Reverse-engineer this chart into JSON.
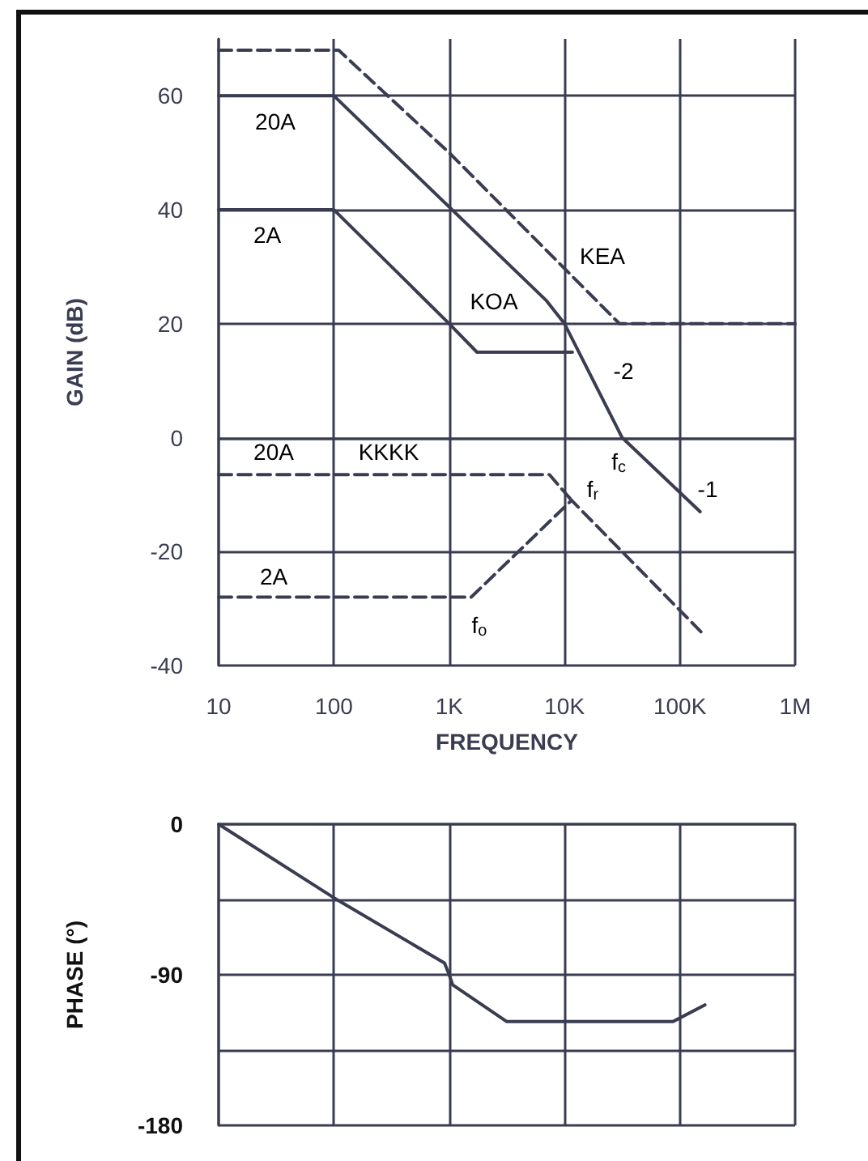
{
  "chart_data": [
    {
      "type": "line",
      "xlabel": "FREQUENCY",
      "ylabel": "GAIN (dB)",
      "log": "x",
      "grid": true,
      "marker": "none",
      "xlim": [
        10,
        1000000
      ],
      "xticks": [
        {
          "value": 10,
          "label": "10"
        },
        {
          "value": 100,
          "label": "100"
        },
        {
          "value": 1000,
          "label": "1K"
        },
        {
          "value": 10000,
          "label": "10K"
        },
        {
          "value": 100000,
          "label": "100K"
        },
        {
          "value": 1000000,
          "label": "1M"
        }
      ],
      "ylim": [
        -40,
        70
      ],
      "yticks": [
        -40,
        -20,
        0,
        20,
        40,
        60
      ],
      "series": [
        {
          "color": "#3a3d52",
          "line_style": "solid",
          "x": [
            10,
            100,
            7000,
            10000,
            31600,
            150000
          ],
          "values": [
            60,
            60,
            24,
            20,
            0,
            -13
          ]
        },
        {
          "color": "#3a3d52",
          "line_style": "solid",
          "x": [
            10,
            100,
            1000,
            1740,
            11700
          ],
          "values": [
            40,
            40,
            20,
            15,
            15
          ]
        },
        {
          "color": "#3a3d52",
          "line_style": "dashed",
          "x": [
            10,
            110,
            1000,
            30000,
            1000000
          ],
          "values": [
            68,
            68,
            50,
            20,
            20
          ]
        },
        {
          "color": "#3a3d52",
          "line_style": "dashed",
          "x": [
            10,
            7400,
            11500
          ],
          "values": [
            -6.5,
            -6.5,
            -11
          ]
        },
        {
          "color": "#3a3d52",
          "line_style": "dashed",
          "x": [
            10,
            1550,
            11500,
            160000
          ],
          "values": [
            -28,
            -28,
            -11,
            -34.5
          ]
        }
      ],
      "annotations": [
        "20A",
        "2A",
        "KOA",
        "KEA",
        "-2",
        "20A",
        "KKKK",
        "f$_{c}$",
        "f$_{r}$",
        "-1",
        "2A",
        "f$_{o}$"
      ]
    },
    {
      "type": "line",
      "ylabel": "PHASE (°)",
      "log": "x",
      "grid": true,
      "marker": "none",
      "tick_labels": "y",
      "xlim": [
        10,
        1000000
      ],
      "xticks": [
        10,
        100,
        1000,
        10000,
        100000,
        1000000
      ],
      "ylim": [
        -180,
        0
      ],
      "yticks": [
        0,
        {
          "value": -45,
          "label": null
        },
        -90,
        {
          "value": -135,
          "label": null
        },
        -180
      ],
      "series": [
        {
          "color": "#3a3d52",
          "line_style": "solid",
          "x": [
            10,
            100,
            910,
            1000,
            1070,
            3160,
            87000,
            165000
          ],
          "values": [
            0,
            -44,
            -83,
            -90,
            -96,
            -118,
            -118,
            -108
          ]
        }
      ]
    }
  ]
}
